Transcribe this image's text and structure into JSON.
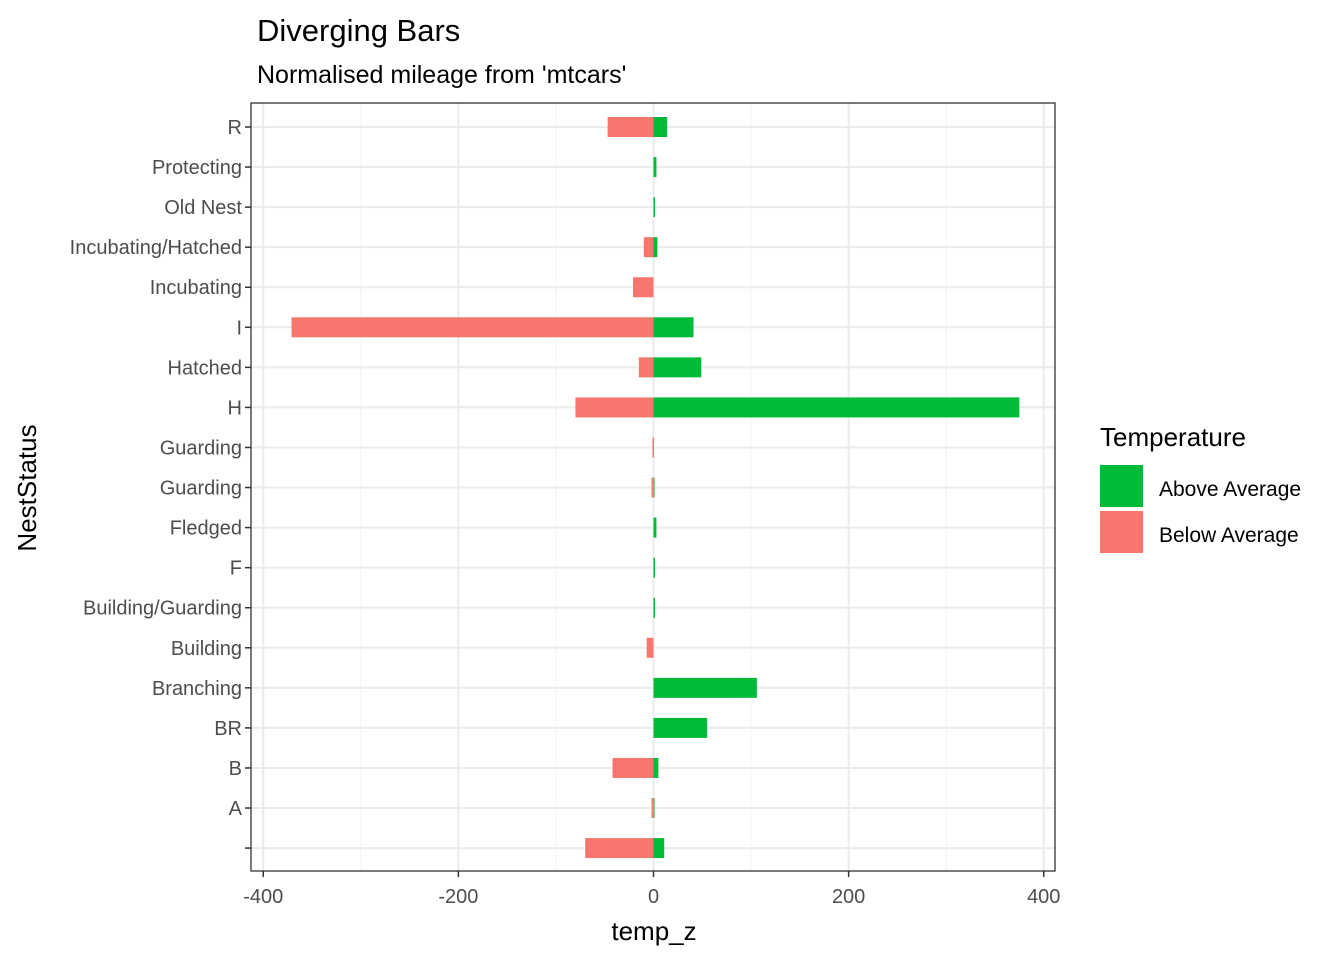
{
  "chart_data": {
    "type": "bar",
    "orientation": "horizontal",
    "title": "Diverging Bars",
    "subtitle": "Normalised mileage from 'mtcars'",
    "xlabel": "temp_z",
    "ylabel": "NestStatus",
    "xlim": [
      -400,
      400
    ],
    "x_ticks": [
      -400,
      -200,
      0,
      200,
      400
    ],
    "x_tick_labels": [
      "-400",
      "-200",
      "0",
      "200",
      "400"
    ],
    "grid": true,
    "legend": {
      "title": "Temperature",
      "placement": "right",
      "entries": [
        {
          "label": "Above Average",
          "color": "#00BA38"
        },
        {
          "label": "Below Average",
          "color": "#F8766D"
        }
      ]
    },
    "categories": [
      "R",
      "Protecting",
      "Old Nest",
      "Incubating/Hatched",
      "Incubating",
      "I",
      "Hatched",
      "H",
      "Guarding ",
      "Guarding",
      "Fledged",
      "F",
      "Building/Guarding",
      "Building",
      "Branching",
      "BR",
      "B",
      "A",
      ""
    ],
    "series": [
      {
        "name": "Above Average",
        "color": "#00BA38",
        "values": [
          14,
          3,
          1,
          4,
          0,
          41,
          49,
          375,
          0,
          1,
          3,
          1,
          1,
          0,
          106,
          55,
          5,
          1,
          11
        ]
      },
      {
        "name": "Below Average",
        "color": "#F8766D",
        "values": [
          -47,
          0,
          0,
          -10,
          -21,
          -371,
          -15,
          -80,
          -1,
          -2,
          0,
          0,
          0,
          -7,
          0,
          0,
          -42,
          -2,
          -70
        ]
      }
    ]
  }
}
